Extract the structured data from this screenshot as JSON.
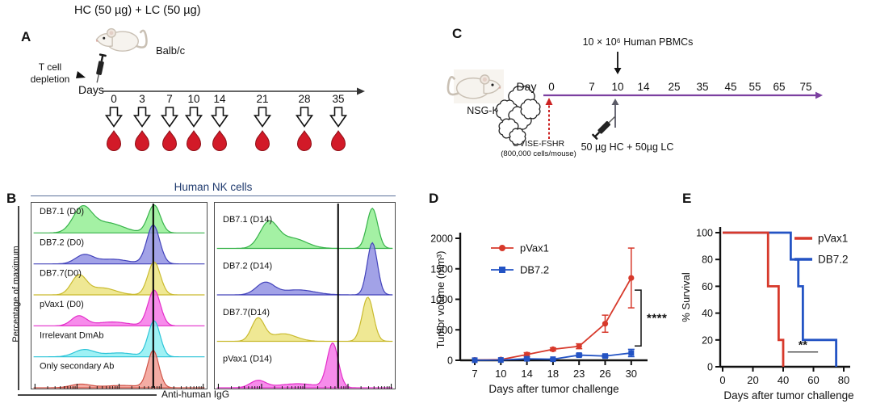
{
  "panel_a": {
    "label": "A",
    "title": "HC (50 µg) + LC (50 µg)",
    "strain": "Balb/c",
    "depletion_note": "T cell\ndepletion",
    "days_label": "Days",
    "days": [
      "0",
      "3",
      "7",
      "10",
      "14",
      "21",
      "28",
      "35"
    ]
  },
  "panel_b": {
    "label": "B",
    "title": "Human NK cells",
    "ylabel": "Percentage of maximum",
    "xlabel": "Anti-human IgG",
    "left_gate": 0.695,
    "right_gate": 0.685,
    "left_rows": [
      {
        "label": "DB7.1 (D0)",
        "fill": "#90ee90",
        "stroke": "#37b34a",
        "bumps": [
          [
            0.29,
            0.62,
            0.075
          ],
          [
            0.43,
            0.26,
            0.13
          ],
          [
            0.7,
            0.72,
            0.05
          ]
        ]
      },
      {
        "label": "DB7.2 (D0)",
        "fill": "#8d8de2",
        "stroke": "#4343bb",
        "bumps": [
          [
            0.3,
            0.22,
            0.07
          ],
          [
            0.46,
            0.12,
            0.13
          ],
          [
            0.695,
            1.0,
            0.052
          ]
        ]
      },
      {
        "label": "DB7.7(D0)",
        "fill": "#ece37d",
        "stroke": "#c9ba2e",
        "bumps": [
          [
            0.27,
            0.48,
            0.06
          ],
          [
            0.4,
            0.18,
            0.11
          ],
          [
            0.7,
            0.85,
            0.05
          ]
        ]
      },
      {
        "label": "pVax1 (D0)",
        "fill": "#f573e6",
        "stroke": "#e32dc9",
        "bumps": [
          [
            0.27,
            0.25,
            0.06
          ],
          [
            0.46,
            0.1,
            0.13
          ],
          [
            0.7,
            0.92,
            0.05
          ]
        ]
      },
      {
        "label": "Irrelevant DmAb",
        "fill": "#8aeef2",
        "stroke": "#2cc4d8",
        "bumps": [
          [
            0.3,
            0.18,
            0.08
          ],
          [
            0.5,
            0.1,
            0.13
          ],
          [
            0.7,
            0.92,
            0.048
          ]
        ]
      },
      {
        "label": "Only secondary Ab",
        "fill": "#f29a90",
        "stroke": "#cf5246",
        "bumps": [
          [
            0.28,
            0.09,
            0.08
          ],
          [
            0.52,
            0.06,
            0.15
          ],
          [
            0.695,
            0.95,
            0.045
          ]
        ]
      }
    ],
    "right_rows": [
      {
        "label": "DB7.1 (D14)",
        "fill": "#90ee90",
        "stroke": "#37b34a",
        "bumps": [
          [
            0.3,
            0.5,
            0.07
          ],
          [
            0.43,
            0.2,
            0.11
          ],
          [
            0.875,
            0.8,
            0.042
          ]
        ]
      },
      {
        "label": "DB7.2 (D14)",
        "fill": "#8d8de2",
        "stroke": "#4343bb",
        "bumps": [
          [
            0.28,
            0.24,
            0.07
          ],
          [
            0.46,
            0.1,
            0.13
          ],
          [
            0.875,
            1.04,
            0.04
          ]
        ]
      },
      {
        "label": "DB7.7(D14)",
        "fill": "#ece37d",
        "stroke": "#c9ba2e",
        "bumps": [
          [
            0.24,
            0.45,
            0.05
          ],
          [
            0.38,
            0.15,
            0.1
          ],
          [
            0.85,
            0.88,
            0.044
          ]
        ]
      },
      {
        "label": "pVax1 (D14)",
        "fill": "#f573e6",
        "stroke": "#e32dc9",
        "bumps": [
          [
            0.24,
            0.14,
            0.06
          ],
          [
            0.46,
            0.08,
            0.15
          ],
          [
            0.655,
            0.88,
            0.044
          ]
        ]
      }
    ]
  },
  "panel_c": {
    "label": "C",
    "strain": "NSG-K",
    "day_label": "Day",
    "days": [
      "0",
      "7",
      "10",
      "14",
      "25",
      "35",
      "45",
      "55",
      "65",
      "75"
    ],
    "pbmc_note": "10 × 10⁶ Human PBMCs",
    "tumor_note_line1": "OVISE-FSHR",
    "tumor_note_line2": "(800,000 cells/mouse)",
    "treatment_note": "50 µg HC + 50µg LC",
    "timeline_color": "#7b3fa0"
  },
  "panel_d": {
    "label": "D"
  },
  "panel_e": {
    "label": "E"
  },
  "chart_data": [
    {
      "id": "tumor_volume",
      "type": "line",
      "xlabel": "Days after tumor challenge",
      "ylabel": "Tumor volume (mm³)",
      "categories": [
        7,
        10,
        14,
        18,
        23,
        26,
        30
      ],
      "ylim": [
        0,
        2000
      ],
      "yticks": [
        0,
        500,
        1000,
        1500,
        2000
      ],
      "legend_position": "top-left",
      "significance": "****",
      "series": [
        {
          "name": "pVax1",
          "color": "#d7392b",
          "marker": "circle",
          "values": [
            5,
            12,
            95,
            180,
            230,
            600,
            1350
          ],
          "errors": [
            0,
            0,
            30,
            25,
            40,
            140,
            490
          ]
        },
        {
          "name": "DB7.2",
          "color": "#2353c4",
          "marker": "square",
          "values": [
            2,
            5,
            25,
            18,
            85,
            70,
            120
          ],
          "errors": [
            0,
            0,
            12,
            10,
            22,
            18,
            60
          ]
        }
      ]
    },
    {
      "id": "survival",
      "type": "step",
      "xlabel": "Days after tumor challenge",
      "ylabel": "% Survival",
      "xlim": [
        0,
        80
      ],
      "xticks": [
        0,
        20,
        40,
        60,
        80
      ],
      "ylim": [
        0,
        100
      ],
      "yticks": [
        0,
        20,
        40,
        60,
        80,
        100
      ],
      "legend_position": "top-right",
      "significance": "**",
      "series": [
        {
          "name": "pVax1",
          "color": "#d7392b",
          "points": [
            [
              0,
              100
            ],
            [
              30,
              100
            ],
            [
              30,
              60
            ],
            [
              37,
              60
            ],
            [
              37,
              20
            ],
            [
              40,
              20
            ],
            [
              40,
              0
            ]
          ]
        },
        {
          "name": "DB7.2",
          "color": "#2353c4",
          "points": [
            [
              0,
              100
            ],
            [
              45,
              100
            ],
            [
              45,
              80
            ],
            [
              50,
              80
            ],
            [
              50,
              60
            ],
            [
              53,
              60
            ],
            [
              53,
              20
            ],
            [
              75,
              20
            ],
            [
              75,
              0
            ]
          ]
        }
      ]
    }
  ]
}
